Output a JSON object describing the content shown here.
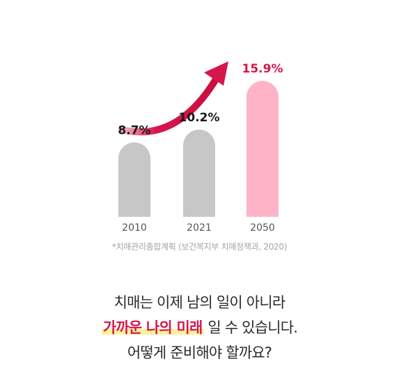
{
  "chart_data": {
    "type": "bar",
    "categories": [
      "2010",
      "2021",
      "2050"
    ],
    "values": [
      8.7,
      10.2,
      15.9
    ],
    "value_labels": [
      "8.7%",
      "10.2%",
      "15.9%"
    ],
    "unit": "%",
    "highlight_index": 2,
    "colors": {
      "bar": "#c7c7c7",
      "bar_highlight": "#ffb3c6",
      "label": "#1a1a1a",
      "label_highlight": "#d6174d",
      "arrow": "#d6174d",
      "tick": "#555555"
    },
    "trend_arrow": true
  },
  "source_note": "*치매관리종합계획 (보건복지부 치매정책과, 2020)",
  "message": {
    "line1": "치매는 이제 남의 일이 아니라",
    "line2_highlight": "가까운 나의 미래",
    "line2_rest": " 일 수 있습니다.",
    "line3": "어떻게 준비해야 할까요?"
  }
}
